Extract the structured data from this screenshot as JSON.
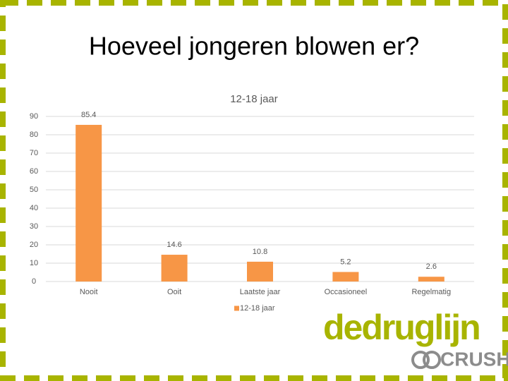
{
  "slide_title": "Hoeveel jongeren blowen er?",
  "logo": {
    "name": "dedruglijn",
    "sub": "CRUSH"
  },
  "chart_data": {
    "type": "bar",
    "title": "12-18 jaar",
    "categories": [
      "Nooit",
      "Ooit",
      "Laatste jaar",
      "Occasioneel",
      "Regelmatig"
    ],
    "series": [
      {
        "name": "12-18 jaar",
        "color": "#f79646",
        "values": [
          85.4,
          14.6,
          10.8,
          5.2,
          2.6
        ]
      }
    ],
    "ylim": [
      0,
      90
    ],
    "yticks": [
      0,
      10,
      20,
      30,
      40,
      50,
      60,
      70,
      80,
      90
    ],
    "grid": true,
    "legend": "bottom"
  }
}
